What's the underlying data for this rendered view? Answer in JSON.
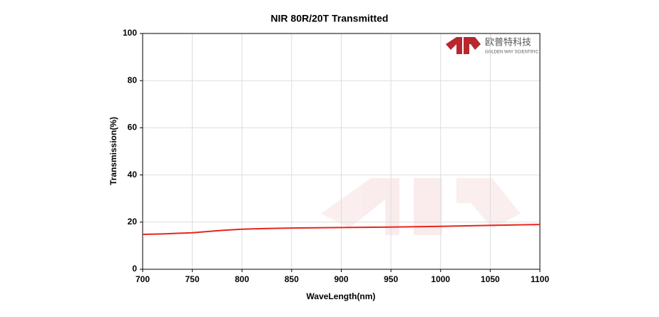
{
  "chart_data": {
    "type": "line",
    "title": "NIR 80R/20T Transmitted",
    "x_label": "WaveLength(nm)",
    "y_label": "Transmission(%)",
    "watermark": [
      "欧普特科技",
      "GOLDEN WAY SCIENTIFIC"
    ],
    "x": [
      700,
      720,
      750,
      780,
      800,
      825,
      850,
      900,
      950,
      1000,
      1050,
      1100
    ],
    "series": [
      {
        "color": "#e8261c",
        "values": [
          14.8,
          15.0,
          15.5,
          16.5,
          17.0,
          17.3,
          17.5,
          17.7,
          17.9,
          18.2,
          18.6,
          19.0
        ]
      }
    ],
    "xlim": [
      700,
      1100
    ],
    "xticks": [
      700,
      750,
      800,
      850,
      900,
      950,
      1000,
      1050,
      1100
    ],
    "ylim": [
      0,
      100
    ],
    "yticks": [
      0,
      20,
      40,
      60,
      80,
      100
    ],
    "grid": true
  }
}
